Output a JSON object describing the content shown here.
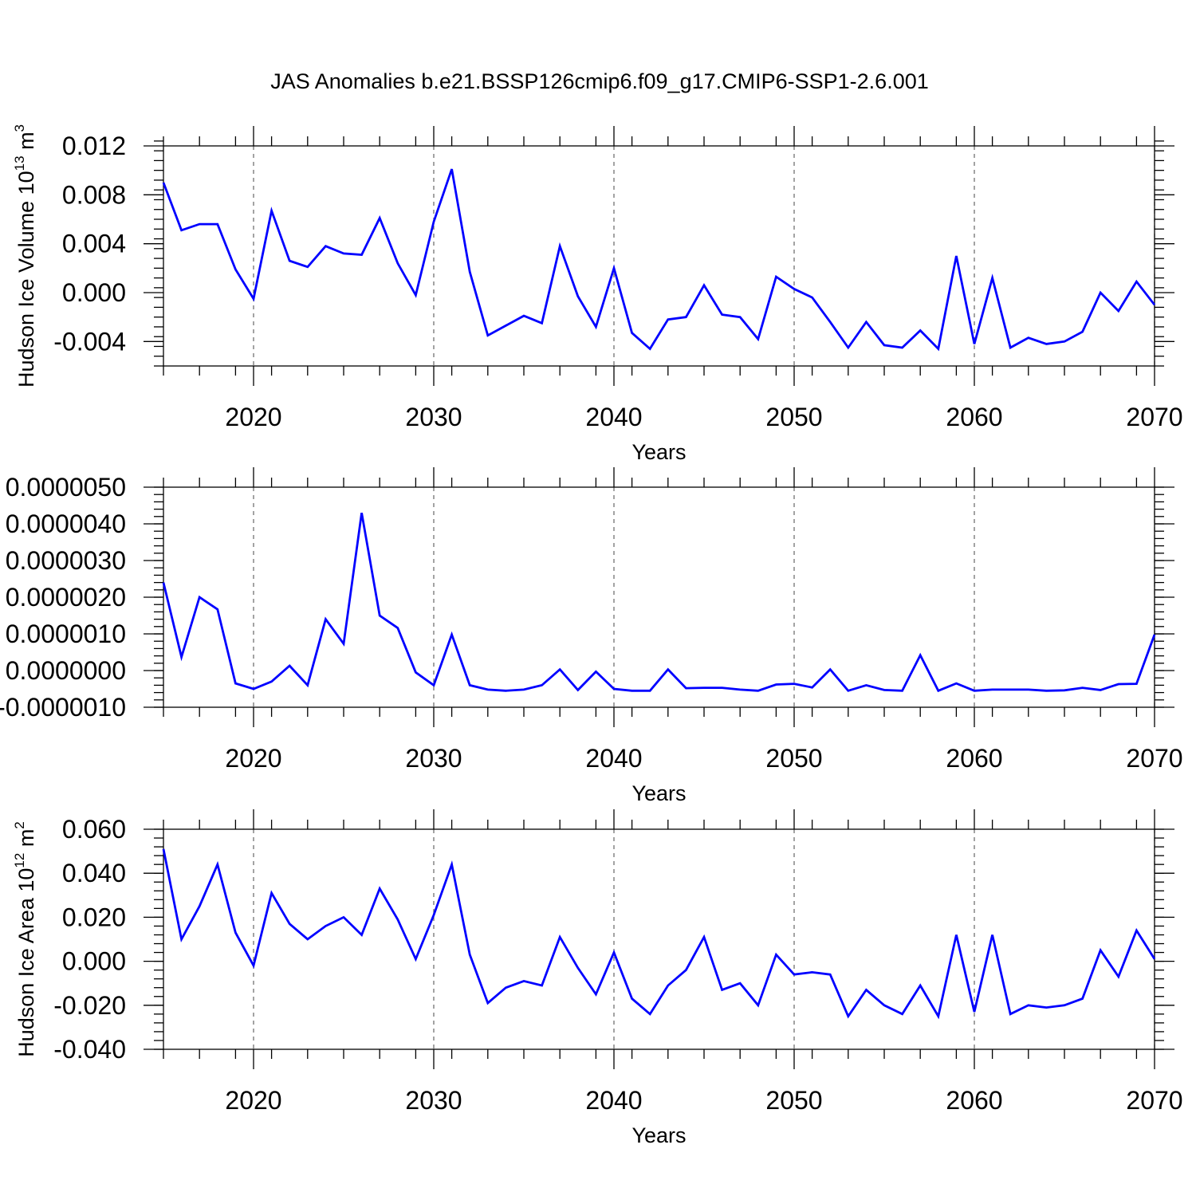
{
  "figure": {
    "title": "JAS Anomalies b.e21.BSSP126cmip6.f09_g17.CMIP6-SSP1-2.6.001",
    "line_color": "#0000ff"
  },
  "chart_data": [
    {
      "type": "line",
      "title": "",
      "xlabel": "Years",
      "ylabel": "Hudson Ice Volume 10",
      "ylabel_sup": "13",
      "ylabel_unit": "m",
      "ylabel_unit_sup": "3",
      "xlim": [
        2015,
        2070
      ],
      "ylim": [
        -0.006,
        0.012
      ],
      "xticks": [
        2020,
        2030,
        2040,
        2050,
        2060,
        2070
      ],
      "yticks": [
        -0.004,
        0.0,
        0.004,
        0.008,
        0.012
      ],
      "ytick_labels": [
        "-0.004",
        "0.000",
        "0.004",
        "0.008",
        "0.012"
      ],
      "grid": "vertical dashed at major x ticks",
      "x": [
        2015,
        2016,
        2017,
        2018,
        2019,
        2020,
        2021,
        2022,
        2023,
        2024,
        2025,
        2026,
        2027,
        2028,
        2029,
        2030,
        2031,
        2032,
        2033,
        2034,
        2035,
        2036,
        2037,
        2038,
        2039,
        2040,
        2041,
        2042,
        2043,
        2044,
        2045,
        2046,
        2047,
        2048,
        2049,
        2050,
        2051,
        2052,
        2053,
        2054,
        2055,
        2056,
        2057,
        2058,
        2059,
        2060,
        2061,
        2062,
        2063,
        2064,
        2065,
        2066,
        2067,
        2068,
        2069,
        2070
      ],
      "values": [
        0.009,
        0.0051,
        0.0056,
        0.0056,
        0.0019,
        -0.0005,
        0.0067,
        0.0026,
        0.0021,
        0.0038,
        0.0032,
        0.0031,
        0.0061,
        0.0024,
        -0.0002,
        0.0058,
        0.0101,
        0.0017,
        -0.0035,
        -0.0027,
        -0.0019,
        -0.0025,
        0.0038,
        -0.0003,
        -0.0028,
        0.002,
        -0.0033,
        -0.0046,
        -0.0022,
        -0.002,
        0.0006,
        -0.0018,
        -0.002,
        -0.0038,
        0.0013,
        0.0003,
        -0.0004,
        -0.0024,
        -0.0045,
        -0.0024,
        -0.0043,
        -0.0045,
        -0.0031,
        -0.0046,
        0.003,
        -0.0042,
        0.0012,
        -0.0045,
        -0.0037,
        -0.0042,
        -0.004,
        -0.0032,
        0.0,
        -0.0015,
        0.0009,
        -0.001
      ]
    },
    {
      "type": "line",
      "title": "",
      "xlabel": "Years",
      "ylabel": "",
      "xlim": [
        2015,
        2070
      ],
      "ylim": [
        -1e-06,
        5e-06
      ],
      "xticks": [
        2020,
        2030,
        2040,
        2050,
        2060,
        2070
      ],
      "yticks": [
        -1e-06,
        0.0,
        1e-06,
        2e-06,
        3e-06,
        4e-06,
        5e-06
      ],
      "ytick_labels": [
        "-0.0000010",
        "0.0000000",
        "0.0000010",
        "0.0000020",
        "0.0000030",
        "0.0000040",
        "0.0000050"
      ],
      "grid": "vertical dashed at major x ticks",
      "x": [
        2015,
        2016,
        2017,
        2018,
        2019,
        2020,
        2021,
        2022,
        2023,
        2024,
        2025,
        2026,
        2027,
        2028,
        2029,
        2030,
        2031,
        2032,
        2033,
        2034,
        2035,
        2036,
        2037,
        2038,
        2039,
        2040,
        2041,
        2042,
        2043,
        2044,
        2045,
        2046,
        2047,
        2048,
        2049,
        2050,
        2051,
        2052,
        2053,
        2054,
        2055,
        2056,
        2057,
        2058,
        2059,
        2060,
        2061,
        2062,
        2063,
        2064,
        2065,
        2066,
        2067,
        2068,
        2069,
        2070
      ],
      "values": [
        2.4e-06,
        3.7e-07,
        2e-06,
        1.67e-06,
        -3.5e-07,
        -5e-07,
        -3e-07,
        1.3e-07,
        -4e-07,
        1.4e-06,
        7.3e-07,
        4.3e-06,
        1.5e-06,
        1.16e-06,
        -5e-08,
        -4e-07,
        9.8e-07,
        -4e-07,
        -5.2e-07,
        -5.5e-07,
        -5.2e-07,
        -4e-07,
        3e-08,
        -5.3e-07,
        -3e-08,
        -5e-07,
        -5.5e-07,
        -5.5e-07,
        3e-08,
        -4.8e-07,
        -4.7e-07,
        -4.7e-07,
        -5.2e-07,
        -5.5e-07,
        -3.8e-07,
        -3.6e-07,
        -4.6e-07,
        3e-08,
        -5.5e-07,
        -4e-07,
        -5.3e-07,
        -5.5e-07,
        4.2e-07,
        -5.5e-07,
        -3.5e-07,
        -5.5e-07,
        -5.2e-07,
        -5.2e-07,
        -5.2e-07,
        -5.5e-07,
        -5.4e-07,
        -4.7e-07,
        -5.3e-07,
        -3.7e-07,
        -3.6e-07,
        9.8e-07
      ]
    },
    {
      "type": "line",
      "title": "",
      "xlabel": "Years",
      "ylabel": "Hudson Ice Area 10",
      "ylabel_sup": "12",
      "ylabel_unit": "m",
      "ylabel_unit_sup": "2",
      "xlim": [
        2015,
        2070
      ],
      "ylim": [
        -0.04,
        0.06
      ],
      "xticks": [
        2020,
        2030,
        2040,
        2050,
        2060,
        2070
      ],
      "yticks": [
        -0.04,
        -0.02,
        0.0,
        0.02,
        0.04,
        0.06
      ],
      "ytick_labels": [
        "-0.040",
        "-0.020",
        "0.000",
        "0.020",
        "0.040",
        "0.060"
      ],
      "grid": "vertical dashed at major x ticks",
      "x": [
        2015,
        2016,
        2017,
        2018,
        2019,
        2020,
        2021,
        2022,
        2023,
        2024,
        2025,
        2026,
        2027,
        2028,
        2029,
        2030,
        2031,
        2032,
        2033,
        2034,
        2035,
        2036,
        2037,
        2038,
        2039,
        2040,
        2041,
        2042,
        2043,
        2044,
        2045,
        2046,
        2047,
        2048,
        2049,
        2050,
        2051,
        2052,
        2053,
        2054,
        2055,
        2056,
        2057,
        2058,
        2059,
        2060,
        2061,
        2062,
        2063,
        2064,
        2065,
        2066,
        2067,
        2068,
        2069,
        2070
      ],
      "values": [
        0.051,
        0.01,
        0.025,
        0.044,
        0.013,
        -0.002,
        0.031,
        0.017,
        0.01,
        0.016,
        0.02,
        0.012,
        0.033,
        0.019,
        0.001,
        0.021,
        0.044,
        0.003,
        -0.019,
        -0.012,
        -0.009,
        -0.011,
        0.011,
        -0.003,
        -0.015,
        0.004,
        -0.017,
        -0.024,
        -0.011,
        -0.004,
        0.011,
        -0.013,
        -0.01,
        -0.02,
        0.003,
        -0.006,
        -0.005,
        -0.006,
        -0.025,
        -0.013,
        -0.02,
        -0.024,
        -0.011,
        -0.025,
        0.012,
        -0.023,
        0.012,
        -0.024,
        -0.02,
        -0.021,
        -0.02,
        -0.017,
        0.005,
        -0.007,
        0.014,
        0.001
      ]
    }
  ]
}
